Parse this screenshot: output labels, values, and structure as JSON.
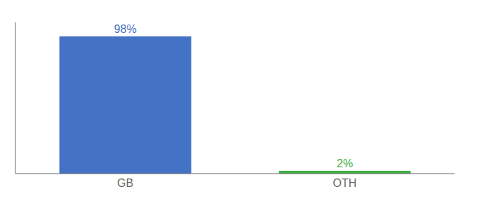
{
  "chart_data": {
    "type": "bar",
    "categories": [
      "GB",
      "OTH"
    ],
    "values": [
      98,
      2
    ],
    "colors": [
      "#4472C4",
      "#3DB043"
    ],
    "ylim": [
      0,
      108
    ],
    "data_labels": true,
    "value_labels": [
      "98%",
      "2%"
    ],
    "tick_labels": "x"
  }
}
